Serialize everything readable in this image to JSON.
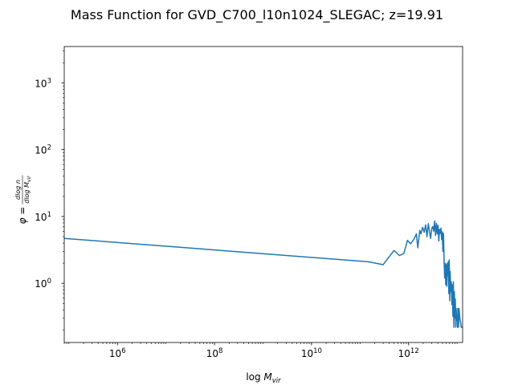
{
  "chart_data": {
    "type": "line",
    "title": "Mass Function for GVD_C700_l10n1024_SLEGAC; z=19.91",
    "xlabel": "log M_vir",
    "ylabel": "φ = dlog n / dlog M_vir",
    "xscale": "log",
    "yscale": "log",
    "xlim": [
      80000,
      13000000000000
    ],
    "ylim": [
      0.13,
      3500
    ],
    "x_ticks": [
      {
        "value": 1000000,
        "base": "10",
        "exp": "6"
      },
      {
        "value": 100000000,
        "base": "10",
        "exp": "8"
      },
      {
        "value": 10000000000,
        "base": "10",
        "exp": "10"
      },
      {
        "value": 1000000000000,
        "base": "10",
        "exp": "12"
      }
    ],
    "y_ticks": [
      {
        "value": 1,
        "base": "10",
        "exp": "0"
      },
      {
        "value": 10,
        "base": "10",
        "exp": "1"
      },
      {
        "value": 100,
        "base": "10",
        "exp": "2"
      },
      {
        "value": 1000,
        "base": "10",
        "exp": "3"
      }
    ],
    "grid": false,
    "legend": "none",
    "line_color": "#1f77b4",
    "series": [
      {
        "x": [
          80000,
          150000000000,
          300000000000,
          500000000000,
          650000000000,
          800000000000,
          950000000000,
          1100000000000,
          1300000000000,
          1450000000000,
          1550000000000,
          1700000000000,
          1800000000000,
          1950000000000,
          2100000000000,
          2250000000000,
          2400000000000,
          2550000000000,
          2700000000000,
          2850000000000,
          3000000000000,
          3150000000000,
          3300000000000,
          3450000000000,
          3600000000000,
          3750000000000,
          3900000000000,
          4050000000000,
          4200000000000,
          4350000000000,
          4500000000000,
          4650000000000,
          4800000000000,
          4950000000000,
          5100000000000,
          5250000000000,
          5400000000000,
          5550000000000,
          5700000000000,
          5850000000000,
          6000000000000,
          6150000000000,
          6300000000000,
          6450000000000,
          6600000000000,
          6750000000000,
          6900000000000,
          7050000000000,
          7200000000000,
          7400000000000,
          7600000000000,
          7800000000000,
          8000000000000,
          8200000000000,
          8400000000000,
          8600000000000,
          8800000000000,
          9000000000000,
          9200000000000,
          9400000000000,
          9600000000000,
          9800000000000,
          10000000000000,
          10200000000000,
          10400000000000,
          10700000000000,
          11000000000000,
          11400000000000,
          11800000000000,
          12200000000000,
          12600000000000,
          13000000000000
        ],
        "y": [
          4.7,
          2.1,
          1.9,
          3.1,
          2.6,
          2.8,
          4.4,
          3.9,
          4.6,
          5.5,
          3.4,
          6.2,
          5.5,
          6.9,
          5.8,
          7.5,
          5.0,
          7.8,
          5.9,
          4.7,
          6.5,
          7.1,
          6.0,
          8.6,
          5.2,
          7.9,
          5.5,
          7.4,
          4.3,
          6.4,
          5.6,
          6.7,
          4.5,
          5.9,
          3.0,
          5.6,
          2.2,
          1.2,
          2.0,
          0.95,
          1.9,
          0.9,
          2.0,
          1.3,
          2.1,
          0.7,
          2.25,
          0.55,
          1.5,
          0.75,
          1.05,
          0.48,
          0.95,
          0.32,
          1.05,
          0.22,
          0.75,
          0.3,
          0.58,
          0.22,
          0.42,
          0.28,
          0.33,
          0.22,
          0.42,
          0.22,
          0.42,
          0.3,
          0.26,
          0.22,
          0.22,
          0.22
        ]
      }
    ]
  }
}
